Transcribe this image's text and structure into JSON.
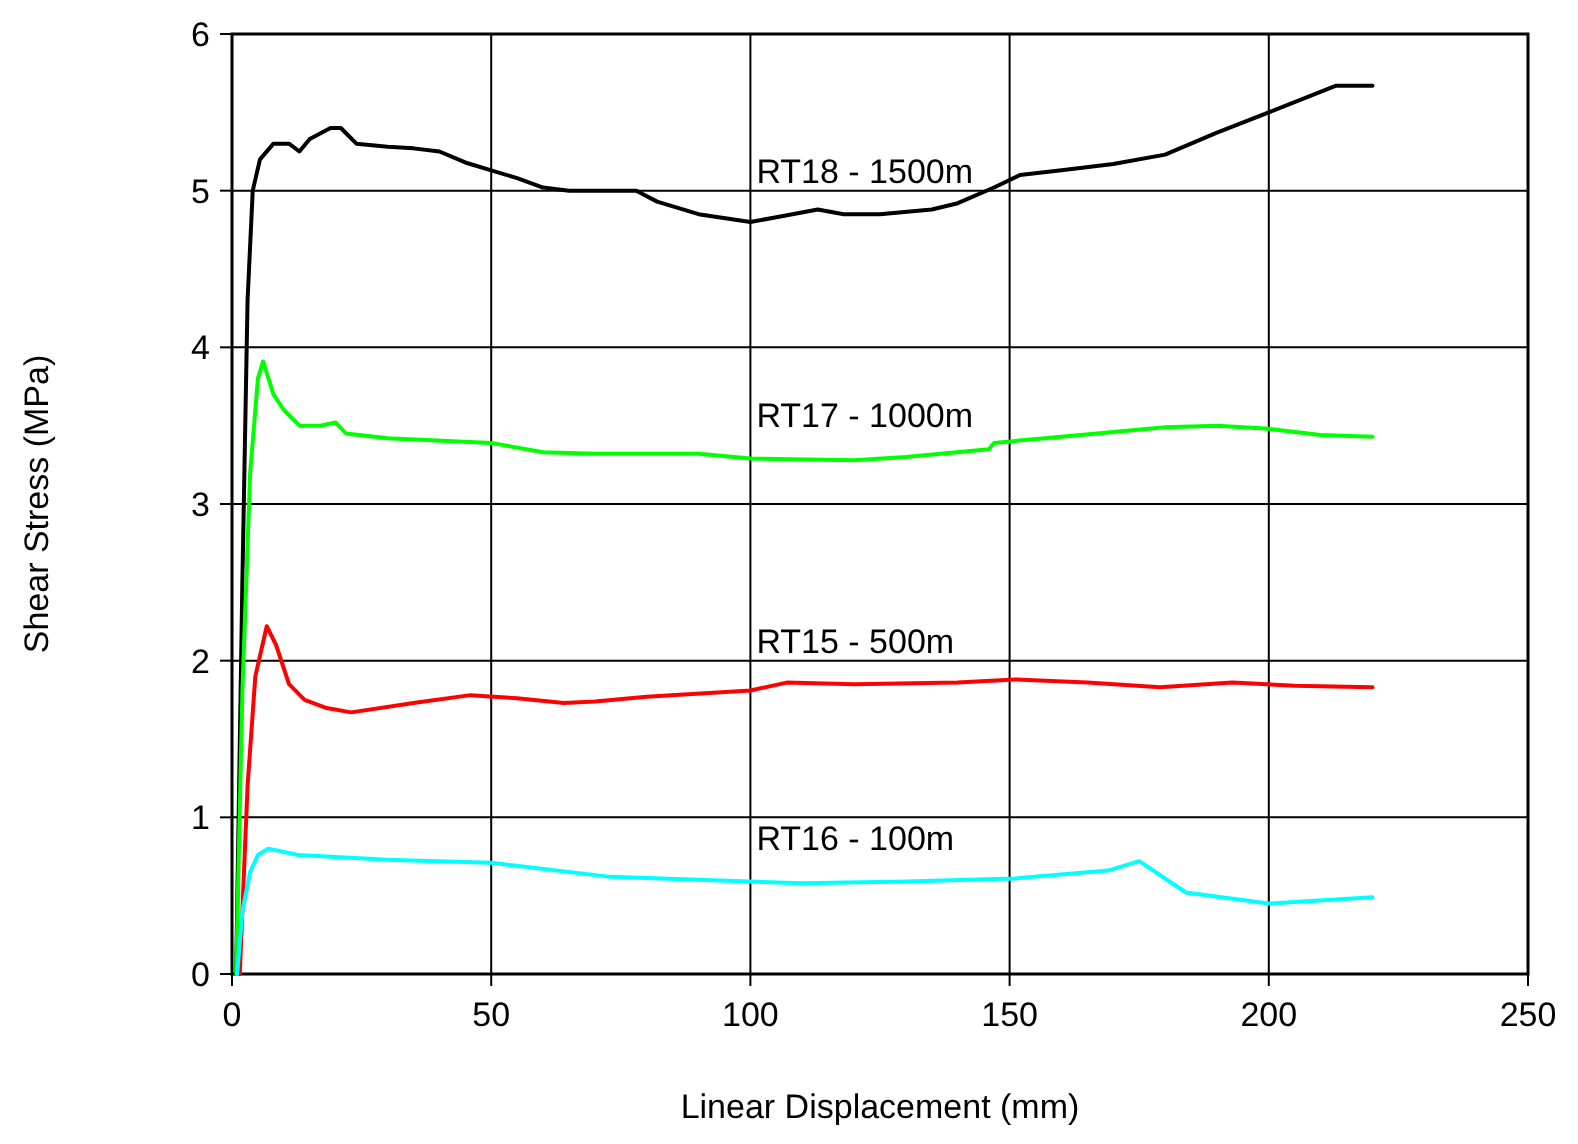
{
  "chart_data": {
    "type": "line",
    "xlabel": "Linear Displacement (mm)",
    "ylabel": "Shear Stress (MPa)",
    "xlim": [
      0,
      250
    ],
    "ylim": [
      0,
      6
    ],
    "xticks": [
      0,
      50,
      100,
      150,
      200,
      250
    ],
    "yticks": [
      0,
      1,
      2,
      3,
      4,
      5,
      6
    ],
    "grid": true,
    "marker": "none",
    "line_style": "solid",
    "series": [
      {
        "name": "RT18 - 1500m",
        "color": "#000000",
        "x": [
          0.8,
          2,
          3,
          4,
          5.4,
          8,
          11,
          13,
          15,
          19,
          21,
          24,
          30,
          35,
          40,
          45,
          50,
          55,
          60,
          65,
          70,
          78,
          82,
          90,
          100,
          105,
          113,
          118,
          125,
          135,
          140,
          147,
          152,
          160,
          170,
          180,
          190,
          200,
          213,
          220
        ],
        "values": [
          0,
          2.5,
          4.3,
          5.0,
          5.2,
          5.3,
          5.3,
          5.25,
          5.33,
          5.4,
          5.4,
          5.3,
          5.28,
          5.27,
          5.25,
          5.18,
          5.13,
          5.08,
          5.02,
          5.0,
          5.0,
          5.0,
          4.93,
          4.85,
          4.8,
          4.83,
          4.88,
          4.85,
          4.85,
          4.88,
          4.92,
          5.02,
          5.1,
          5.13,
          5.17,
          5.23,
          5.37,
          5.5,
          5.67,
          5.67
        ]
      },
      {
        "name": "RT17 - 1000m",
        "color": "#00ff00",
        "x": [
          0.8,
          2,
          3.5,
          5,
          6,
          8,
          10,
          13,
          17,
          20,
          22,
          30,
          50,
          60,
          70,
          90,
          100,
          120,
          130,
          146,
          147,
          160,
          180,
          190,
          200,
          210,
          220
        ],
        "values": [
          0,
          1.8,
          3.2,
          3.8,
          3.91,
          3.7,
          3.6,
          3.5,
          3.5,
          3.52,
          3.45,
          3.42,
          3.39,
          3.33,
          3.32,
          3.32,
          3.29,
          3.28,
          3.3,
          3.35,
          3.39,
          3.43,
          3.49,
          3.5,
          3.48,
          3.44,
          3.43
        ]
      },
      {
        "name": "RT15 - 500m",
        "color": "#ff0000",
        "x": [
          1.5,
          3,
          4.5,
          6.7,
          8.5,
          11,
          14,
          18,
          23,
          35,
          46,
          55,
          64,
          70,
          80,
          100,
          107,
          120,
          140,
          151,
          165,
          179,
          193,
          205,
          220
        ],
        "values": [
          0,
          1.2,
          1.9,
          2.22,
          2.1,
          1.85,
          1.75,
          1.7,
          1.67,
          1.73,
          1.78,
          1.76,
          1.73,
          1.74,
          1.77,
          1.81,
          1.86,
          1.85,
          1.86,
          1.88,
          1.86,
          1.83,
          1.86,
          1.84,
          1.83
        ]
      },
      {
        "name": "RT16 - 100m",
        "color": "#00ffff",
        "x": [
          1,
          2,
          3.5,
          5,
          7,
          12.8,
          30,
          50,
          73,
          100,
          110,
          130,
          151,
          169,
          175,
          184,
          200,
          220
        ],
        "values": [
          0,
          0.4,
          0.65,
          0.76,
          0.8,
          0.76,
          0.73,
          0.71,
          0.62,
          0.59,
          0.58,
          0.59,
          0.61,
          0.66,
          0.72,
          0.52,
          0.45,
          0.49
        ]
      }
    ]
  }
}
